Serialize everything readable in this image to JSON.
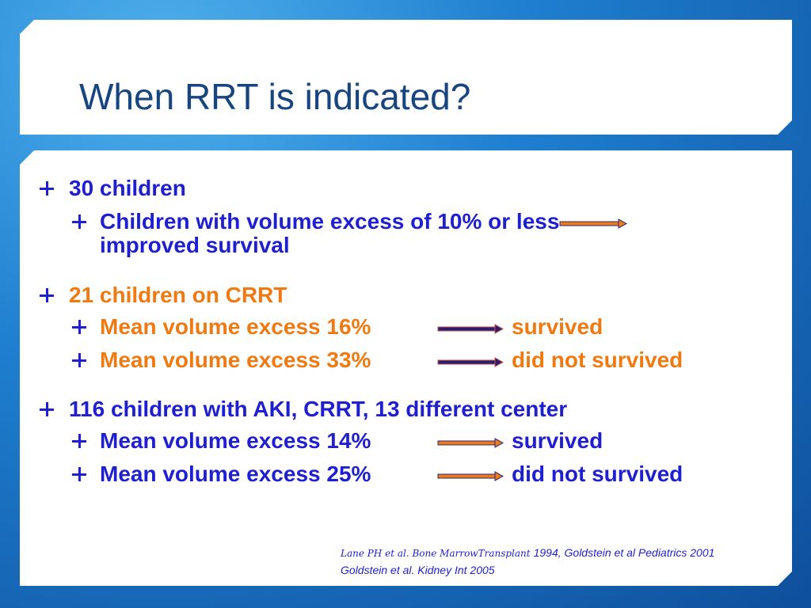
{
  "title": "When RRT is indicated?",
  "sections": [
    {
      "heading": "30 children",
      "items": [
        {
          "text": "Children with volume excess of 10% or less",
          "result": "improved survival"
        }
      ]
    },
    {
      "heading": "21 children on CRRT",
      "items": [
        {
          "text": "Mean volume excess 16%",
          "result": "survived"
        },
        {
          "text": "Mean volume excess 33%",
          "result": "did not survived"
        }
      ]
    },
    {
      "heading": "116 children with AKI, CRRT, 13 different center",
      "items": [
        {
          "text": "Mean volume excess 14%",
          "result": "survived"
        },
        {
          "text": "Mean volume excess 25%",
          "result": "did not survived"
        }
      ]
    }
  ],
  "references": [
    [
      "Lane PH et al. Bone MarrowTransplant",
      "1994, Goldstein et al Pediatrics 2001"
    ],
    [
      "Goldstein et al. Kidney Int 2005"
    ]
  ]
}
